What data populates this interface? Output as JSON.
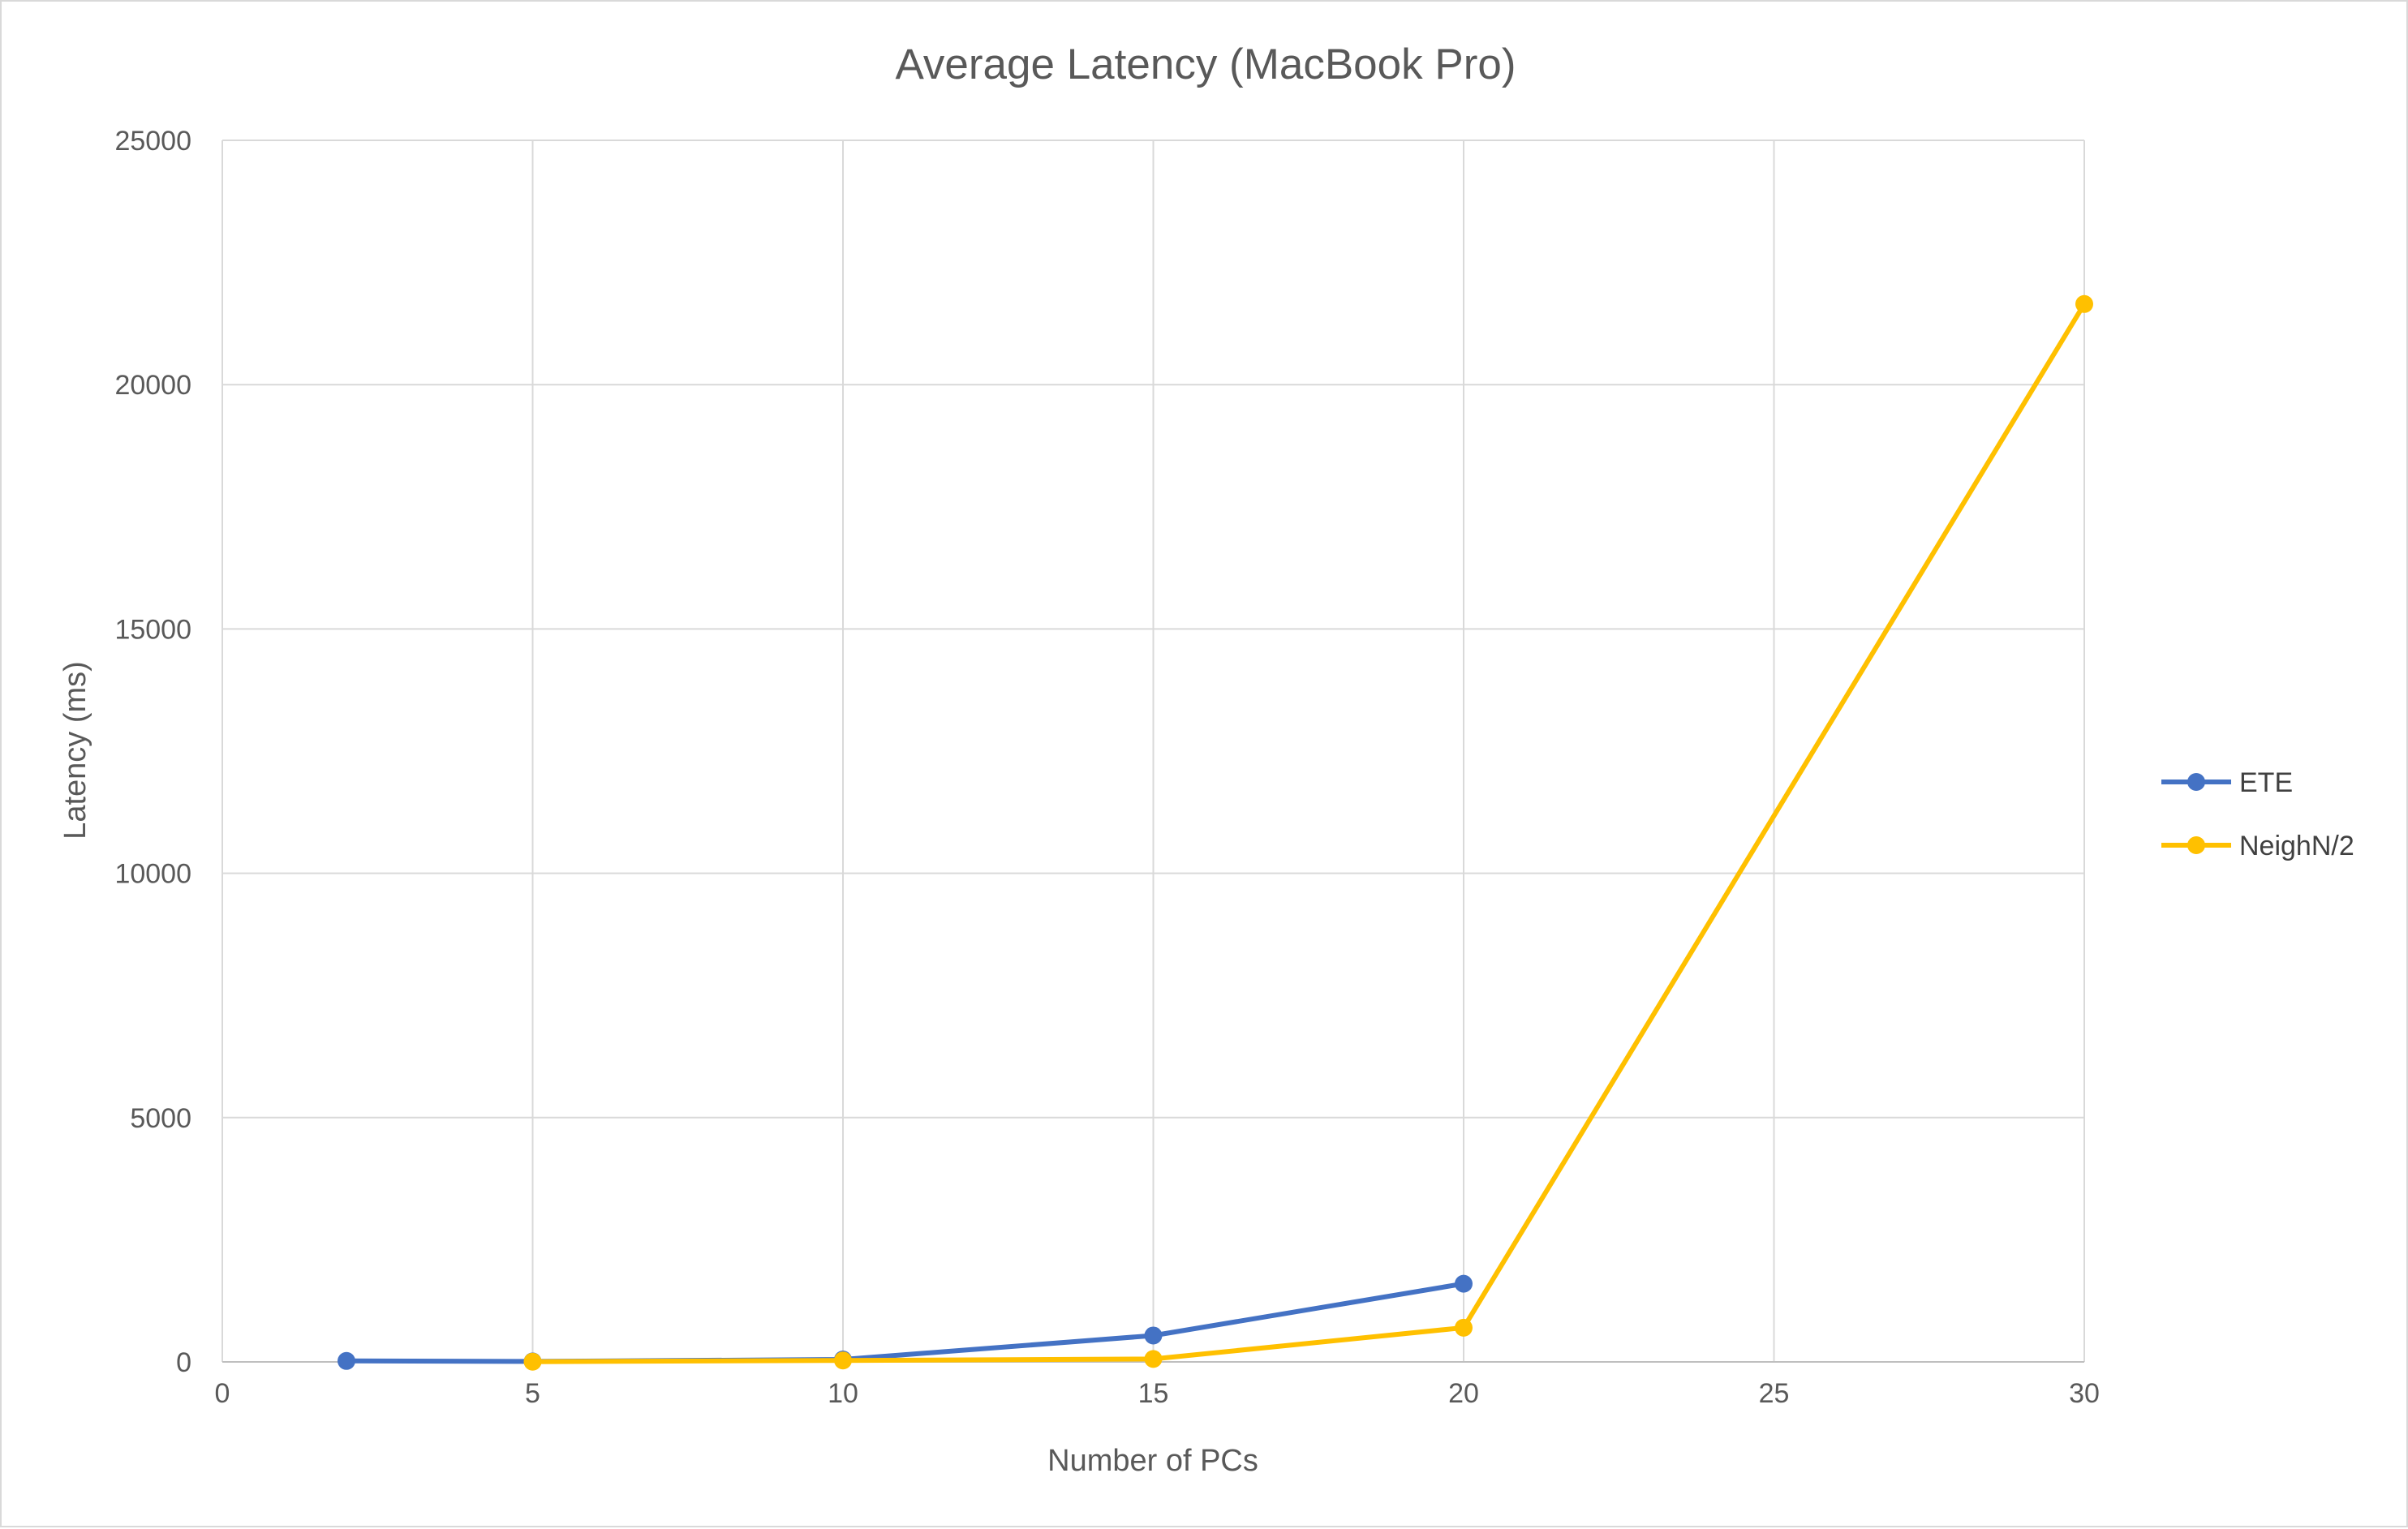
{
  "chart_data": {
    "type": "line",
    "title": "Average Latency (MacBook Pro)",
    "xlabel": "Number of PCs",
    "ylabel": "Latency (ms)",
    "xlim": [
      0,
      30
    ],
    "ylim": [
      0,
      25000
    ],
    "x_ticks": [
      0,
      5,
      10,
      15,
      20,
      25,
      30
    ],
    "y_ticks": [
      0,
      5000,
      10000,
      15000,
      20000,
      25000
    ],
    "grid": true,
    "legend_position": "right",
    "series": [
      {
        "name": "ETE",
        "color": "#4472c4",
        "points": [
          {
            "x": 2,
            "y": 20
          },
          {
            "x": 5,
            "y": 10
          },
          {
            "x": 10,
            "y": 50
          },
          {
            "x": 15,
            "y": 540
          },
          {
            "x": 20,
            "y": 1600
          }
        ]
      },
      {
        "name": "NeighN/2",
        "color": "#ffc000",
        "points": [
          {
            "x": 5,
            "y": 5
          },
          {
            "x": 10,
            "y": 30
          },
          {
            "x": 15,
            "y": 60
          },
          {
            "x": 20,
            "y": 700
          },
          {
            "x": 30,
            "y": 21650
          }
        ]
      }
    ]
  }
}
